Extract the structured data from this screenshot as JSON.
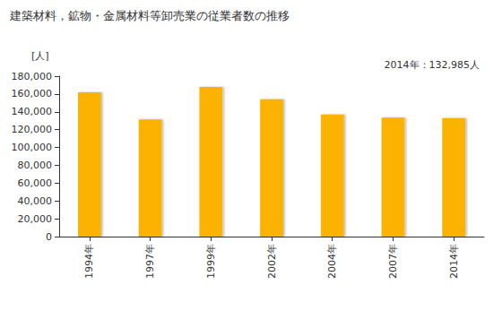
{
  "chart_data": {
    "type": "bar",
    "title": "建築材料，鉱物・金属材料等卸売業の従業者数の推移",
    "y_label": "[人]",
    "annotation": "2014年：132,985人",
    "categories": [
      "1994年",
      "1997年",
      "1999年",
      "2002年",
      "2004年",
      "2007年",
      "2014年"
    ],
    "values": [
      162000,
      131500,
      168000,
      154000,
      137000,
      133500,
      132985
    ],
    "color": "#fbb200",
    "ylim": [
      0,
      180000
    ],
    "yticks": [
      0,
      {
        "value": 20000,
        "label": "20,000"
      },
      {
        "value": 40000,
        "label": "40,000"
      },
      {
        "value": 60000,
        "label": "60,000"
      },
      {
        "value": 80000,
        "label": "80,000"
      },
      {
        "value": 100000,
        "label": "100,000"
      },
      {
        "value": 120000,
        "label": "120,000"
      },
      {
        "value": 140000,
        "label": "140,000"
      },
      {
        "value": 160000,
        "label": "160,000"
      },
      {
        "value": 180000,
        "label": "180,000"
      }
    ],
    "grid": false
  }
}
